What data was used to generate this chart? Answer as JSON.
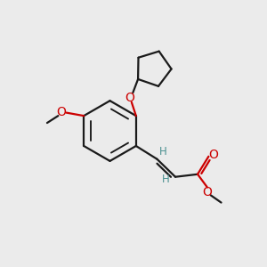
{
  "bg_color": "#ebebeb",
  "bond_color": "#1a1a1a",
  "oxygen_color": "#cc0000",
  "teal_color": "#4a9090",
  "line_width": 1.6,
  "font_size": 8.5,
  "figsize": [
    3.0,
    3.0
  ],
  "dpi": 100,
  "xlim": [
    0,
    10
  ],
  "ylim": [
    0,
    10
  ]
}
